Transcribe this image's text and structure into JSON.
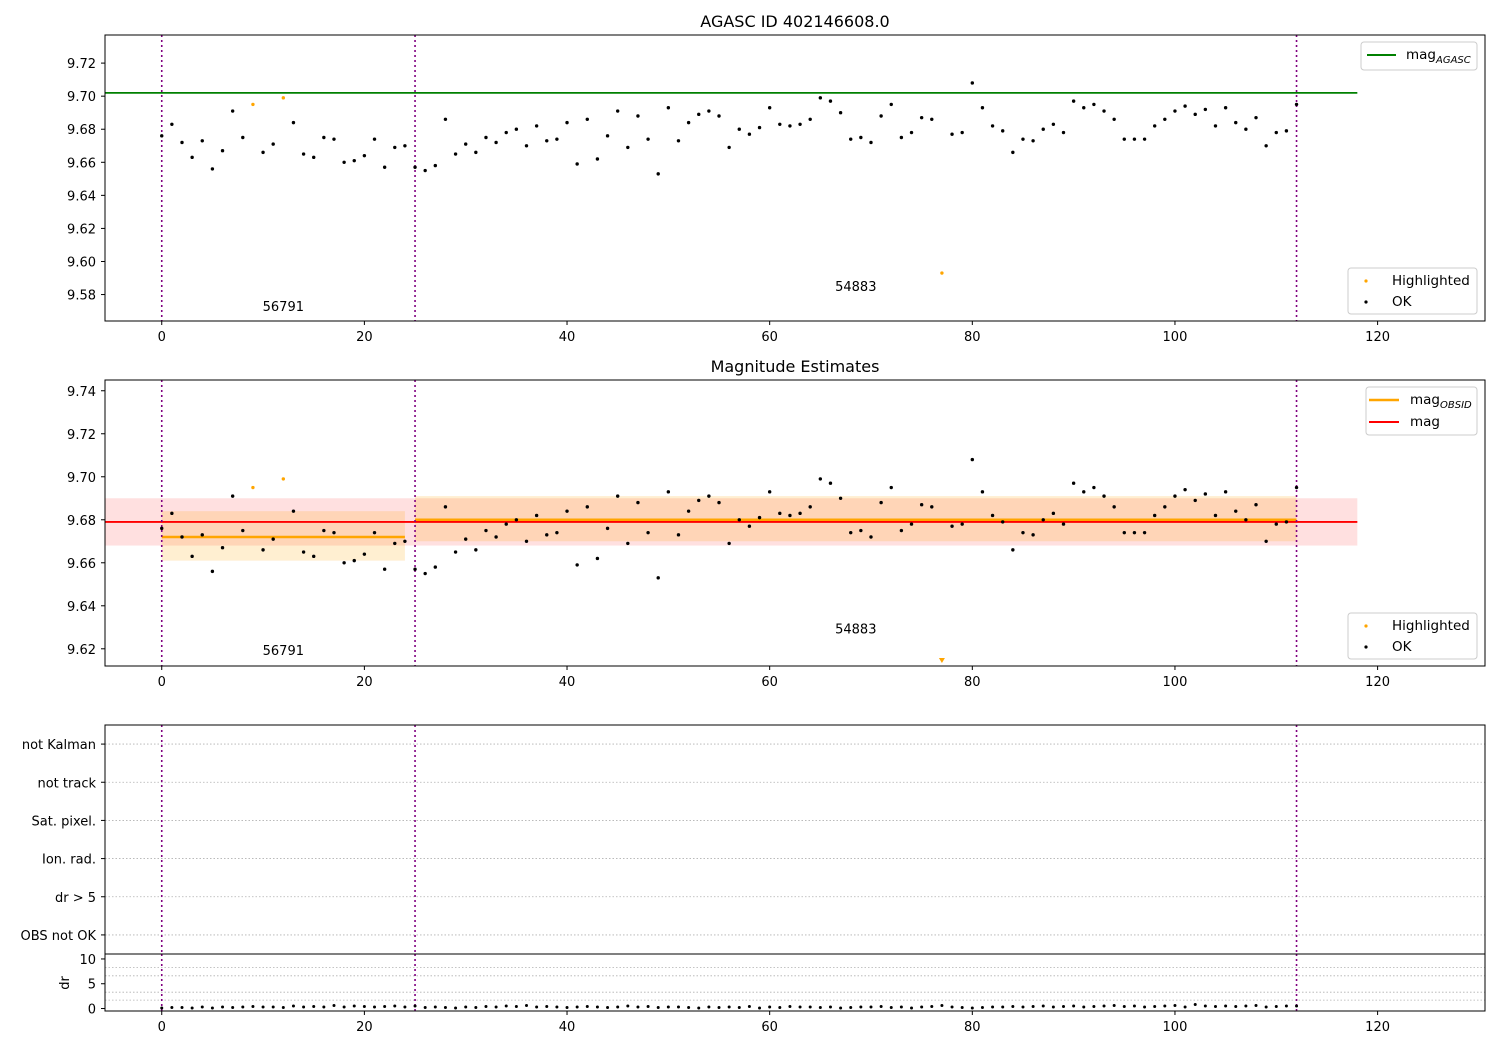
{
  "chart_data": [
    {
      "type": "scatter",
      "title": "AGASC ID 402146608.0",
      "xlim": [
        -5.6,
        130.6
      ],
      "ylim": [
        9.564,
        9.737
      ],
      "xticks": [
        0,
        20,
        40,
        60,
        80,
        100,
        120
      ],
      "xtick_labels": [
        "0",
        "20",
        "40",
        "60",
        "80",
        "100",
        "120"
      ],
      "yticks": [
        9.58,
        9.6,
        9.62,
        9.64,
        9.66,
        9.68,
        9.7,
        9.72
      ],
      "ytick_labels": [
        "9.58",
        "9.60",
        "9.62",
        "9.64",
        "9.66",
        "9.68",
        "9.70",
        "9.72"
      ],
      "obsid_boundaries": [
        0,
        25,
        112
      ],
      "obsid_labels": [
        {
          "text": "56791",
          "x": 12,
          "y": 9.57
        },
        {
          "text": "54883",
          "x": 68.5,
          "y": 9.582
        }
      ],
      "lines": [
        {
          "name": "mag_AGASC",
          "value": 9.702,
          "x_range": [
            -5.6,
            118
          ],
          "color": "#008000"
        }
      ],
      "legend_top": {
        "items": [
          {
            "label": "mag",
            "sub": "AGASC",
            "color": "#008000"
          }
        ],
        "placement": "top-right"
      },
      "legend_bottom": {
        "items": [
          {
            "label": "Highlighted",
            "color": "#ffa500"
          },
          {
            "label": "OK",
            "color": "#000000"
          }
        ],
        "placement": "lower-right"
      },
      "highlight_points": [
        [
          9,
          9.695
        ],
        [
          12,
          9.699
        ],
        [
          77,
          9.593
        ]
      ]
    },
    {
      "type": "scatter",
      "title": "Magnitude Estimates",
      "xlim": [
        -5.6,
        130.6
      ],
      "ylim": [
        9.612,
        9.745
      ],
      "xticks": [
        0,
        20,
        40,
        60,
        80,
        100,
        120
      ],
      "xtick_labels": [
        "0",
        "20",
        "40",
        "60",
        "80",
        "100",
        "120"
      ],
      "yticks": [
        9.62,
        9.64,
        9.66,
        9.68,
        9.7,
        9.72,
        9.74
      ],
      "ytick_labels": [
        "9.62",
        "9.64",
        "9.66",
        "9.68",
        "9.70",
        "9.72",
        "9.74"
      ],
      "obsid_boundaries": [
        0,
        25,
        112
      ],
      "obsid_labels": [
        {
          "text": "56791",
          "x": 12,
          "y": 9.617
        },
        {
          "text": "54883",
          "x": 68.5,
          "y": 9.627
        }
      ],
      "mag": {
        "value": 9.679,
        "band": [
          9.668,
          9.69
        ],
        "x_range": [
          -5.6,
          118
        ],
        "color": "#ff0000",
        "band_color": "rgba(255,0,0,0.12)"
      },
      "mag_obsid": [
        {
          "x_range": [
            0,
            24
          ],
          "value": 9.672,
          "band": [
            9.661,
            9.684
          ]
        },
        {
          "x_range": [
            25,
            112
          ],
          "value": 9.68,
          "band": [
            9.67,
            9.691
          ]
        }
      ],
      "mag_obsid_color": "#ffa500",
      "legend_top": {
        "items": [
          {
            "label": "mag",
            "sub": "OBSID",
            "color": "#ffa500"
          },
          {
            "label": "mag",
            "sub": "",
            "color": "#ff0000"
          }
        ],
        "placement": "top-right"
      },
      "legend_bottom": {
        "items": [
          {
            "label": "Highlighted",
            "color": "#ffa500"
          },
          {
            "label": "OK",
            "color": "#000000"
          }
        ],
        "placement": "lower-right"
      },
      "highlight_points": [
        [
          9,
          9.695
        ],
        [
          12,
          9.7
        ]
      ],
      "offscale_markers": [
        {
          "x": 77,
          "direction": "down"
        }
      ]
    },
    {
      "type": "scatter",
      "title": "",
      "categories": [
        "not Kalman",
        "not track",
        "Sat. pixel.",
        "Ion. rad.",
        "dr > 5",
        "OBS not OK"
      ],
      "xlim": [
        -5.6,
        130.6
      ],
      "ylim": [
        -0.5,
        5.5
      ],
      "obsid_boundaries": [
        0,
        25,
        112
      ]
    },
    {
      "type": "scatter",
      "title": "",
      "ylabel": "dr",
      "xlim": [
        -5.6,
        130.6
      ],
      "ylim": [
        -0.5,
        11
      ],
      "yticks": [
        0,
        5,
        10
      ],
      "ytick_labels": [
        "0",
        "5",
        "10"
      ],
      "xticks": [
        0,
        20,
        40,
        60,
        80,
        100,
        120
      ],
      "xtick_labels": [
        "0",
        "20",
        "40",
        "60",
        "80",
        "100",
        "120"
      ],
      "obsid_boundaries": [
        0,
        25,
        112
      ],
      "dr_values": [
        0.1,
        0.2,
        0.2,
        0.1,
        0.3,
        0.1,
        0.3,
        0.2,
        0.3,
        0.4,
        0.3,
        0.3,
        0.2,
        0.5,
        0.3,
        0.4,
        0.3,
        0.6,
        0.3,
        0.5,
        0.4,
        0.3,
        0.4,
        0.5,
        0.3,
        0.5,
        0.2,
        0.3,
        0.2,
        0.1,
        0.3,
        0.2,
        0.4,
        0.3,
        0.5,
        0.4,
        0.6,
        0.3,
        0.4,
        0.3,
        0.2,
        0.3,
        0.4,
        0.3,
        0.2,
        0.3,
        0.5,
        0.3,
        0.4,
        0.2,
        0.3,
        0.3,
        0.2,
        0.1,
        0.3,
        0.2,
        0.3,
        0.2,
        0.4,
        0.1,
        0.3,
        0.2,
        0.4,
        0.3,
        0.3,
        0.2,
        0.3,
        0.1,
        0.2,
        0.3,
        0.3,
        0.4,
        0.2,
        0.3,
        0.1,
        0.3,
        0.4,
        0.6,
        0.3,
        0.2,
        0.1,
        0.2,
        0.3,
        0.3,
        0.4,
        0.3,
        0.4,
        0.5,
        0.3,
        0.4,
        0.5,
        0.3,
        0.4,
        0.5,
        0.6,
        0.4,
        0.5,
        0.3,
        0.4,
        0.5,
        0.6,
        0.3,
        0.8,
        0.5,
        0.4,
        0.5,
        0.4,
        0.5,
        0.6,
        0.3,
        0.4,
        0.5,
        0.5
      ]
    }
  ],
  "mag_values": [
    9.676,
    9.683,
    9.672,
    9.663,
    9.673,
    9.656,
    9.667,
    9.691,
    9.675,
    9.695,
    9.666,
    9.671,
    9.699,
    9.684,
    9.665,
    9.663,
    9.675,
    9.674,
    9.66,
    9.661,
    9.664,
    9.674,
    9.657,
    9.669,
    9.67,
    9.657,
    9.655,
    9.658,
    9.686,
    9.665,
    9.671,
    9.666,
    9.675,
    9.672,
    9.678,
    9.68,
    9.67,
    9.682,
    9.673,
    9.674,
    9.684,
    9.659,
    9.686,
    9.662,
    9.676,
    9.691,
    9.669,
    9.688,
    9.674,
    9.653,
    9.693,
    9.673,
    9.684,
    9.689,
    9.691,
    9.688,
    9.669,
    9.68,
    9.677,
    9.681,
    9.693,
    9.683,
    9.682,
    9.683,
    9.686,
    9.699,
    9.697,
    9.69,
    9.674,
    9.675,
    9.672,
    9.688,
    9.695,
    9.675,
    9.678,
    9.687,
    9.686,
    9.593,
    9.677,
    9.678,
    9.708,
    9.693,
    9.682,
    9.679,
    9.666,
    9.674,
    9.673,
    9.68,
    9.683,
    9.678,
    9.697,
    9.693,
    9.695,
    9.691,
    9.686,
    9.674,
    9.674,
    9.674,
    9.682,
    9.686,
    9.691,
    9.694,
    9.689,
    9.692,
    9.682,
    9.693,
    9.684,
    9.68,
    9.687,
    9.67,
    9.678,
    9.679,
    9.695
  ],
  "highlighted_indices": [
    9,
    12,
    77
  ]
}
